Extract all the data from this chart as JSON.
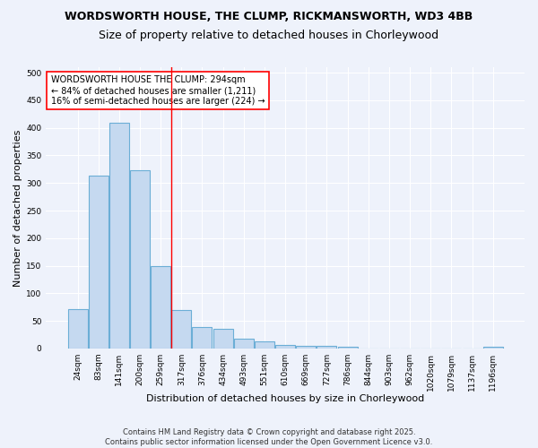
{
  "title": "WORDSWORTH HOUSE, THE CLUMP, RICKMANSWORTH, WD3 4BB",
  "subtitle": "Size of property relative to detached houses in Chorleywood",
  "xlabel": "Distribution of detached houses by size in Chorleywood",
  "ylabel": "Number of detached properties",
  "bar_labels": [
    "24sqm",
    "83sqm",
    "141sqm",
    "200sqm",
    "259sqm",
    "317sqm",
    "376sqm",
    "434sqm",
    "493sqm",
    "551sqm",
    "610sqm",
    "669sqm",
    "727sqm",
    "786sqm",
    "844sqm",
    "903sqm",
    "962sqm",
    "1020sqm",
    "1079sqm",
    "1137sqm",
    "1196sqm"
  ],
  "bar_values": [
    71,
    313,
    410,
    323,
    150,
    70,
    38,
    36,
    18,
    13,
    6,
    5,
    5,
    3,
    0,
    0,
    0,
    0,
    0,
    0,
    3
  ],
  "bar_color": "#c5d9f0",
  "bar_edge_color": "#6baed6",
  "red_line_x": 4.5,
  "annotation_text": "WORDSWORTH HOUSE THE CLUMP: 294sqm\n← 84% of detached houses are smaller (1,211)\n16% of semi-detached houses are larger (224) →",
  "annotation_box_color": "white",
  "annotation_box_edge_color": "red",
  "footer_text": "Contains HM Land Registry data © Crown copyright and database right 2025.\nContains public sector information licensed under the Open Government Licence v3.0.",
  "ylim": [
    0,
    510
  ],
  "yticks": [
    0,
    50,
    100,
    150,
    200,
    250,
    300,
    350,
    400,
    450,
    500
  ],
  "background_color": "#eef2fb",
  "grid_color": "#ffffff",
  "title_fontsize": 9,
  "subtitle_fontsize": 9,
  "axis_label_fontsize": 8,
  "tick_fontsize": 6.5,
  "footer_fontsize": 6,
  "annotation_fontsize": 7
}
